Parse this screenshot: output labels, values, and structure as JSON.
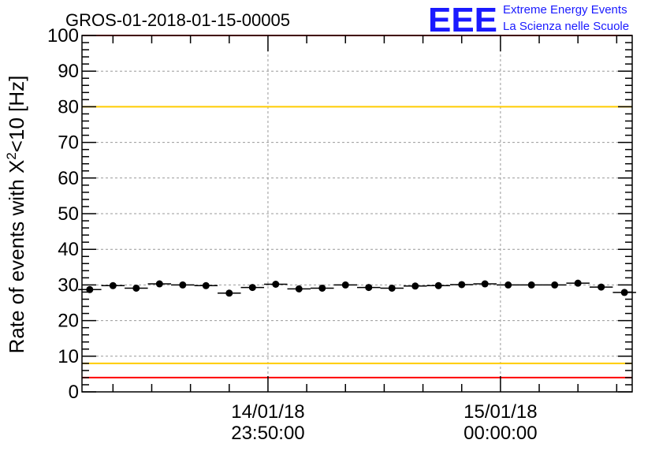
{
  "title": "GROS-01-2018-01-15-00005",
  "logo": {
    "mark": "EEE",
    "line1": "Extreme Energy Events",
    "line2": "La Scienza nelle Scuole",
    "color": "#0000ff"
  },
  "chart_data": {
    "type": "scatter",
    "ylabel_main": "Rate of events with X",
    "ylabel_sup": "2",
    "ylabel_tail": "<10 [Hz]",
    "ylim": [
      0,
      100
    ],
    "yticks": [
      0,
      10,
      20,
      30,
      40,
      50,
      60,
      70,
      80,
      90,
      100
    ],
    "grid": true,
    "xticks": [
      {
        "date": "14/01/18",
        "time": "23:50:00",
        "x": 13.5
      },
      {
        "date": "15/01/18",
        "time": "00:00:00",
        "x": 28.5
      }
    ],
    "xlim": [
      1.5,
      37
    ],
    "series": [
      {
        "x": [
          2,
          3.5,
          5,
          6.5,
          8,
          9.5,
          11,
          12.5,
          14,
          15.5,
          17,
          18.5,
          20,
          21.5,
          23,
          24.5,
          26,
          27.5,
          29,
          30.5,
          32,
          33.5,
          35,
          36.5
        ],
        "values": [
          28.7,
          29.8,
          29.1,
          30.3,
          30.0,
          29.8,
          27.7,
          29.3,
          30.2,
          28.9,
          29.1,
          30.0,
          29.3,
          29.1,
          29.7,
          29.8,
          30.1,
          30.3,
          30.0,
          30.0,
          30.0,
          30.5,
          29.4,
          27.9
        ]
      }
    ],
    "reference_lines": [
      {
        "y": 100,
        "color": "#ff0000"
      },
      {
        "y": 80,
        "color": "#ffcc00"
      },
      {
        "y": 8,
        "color": "#ffcc00"
      },
      {
        "y": 4,
        "color": "#ff0000"
      }
    ]
  }
}
